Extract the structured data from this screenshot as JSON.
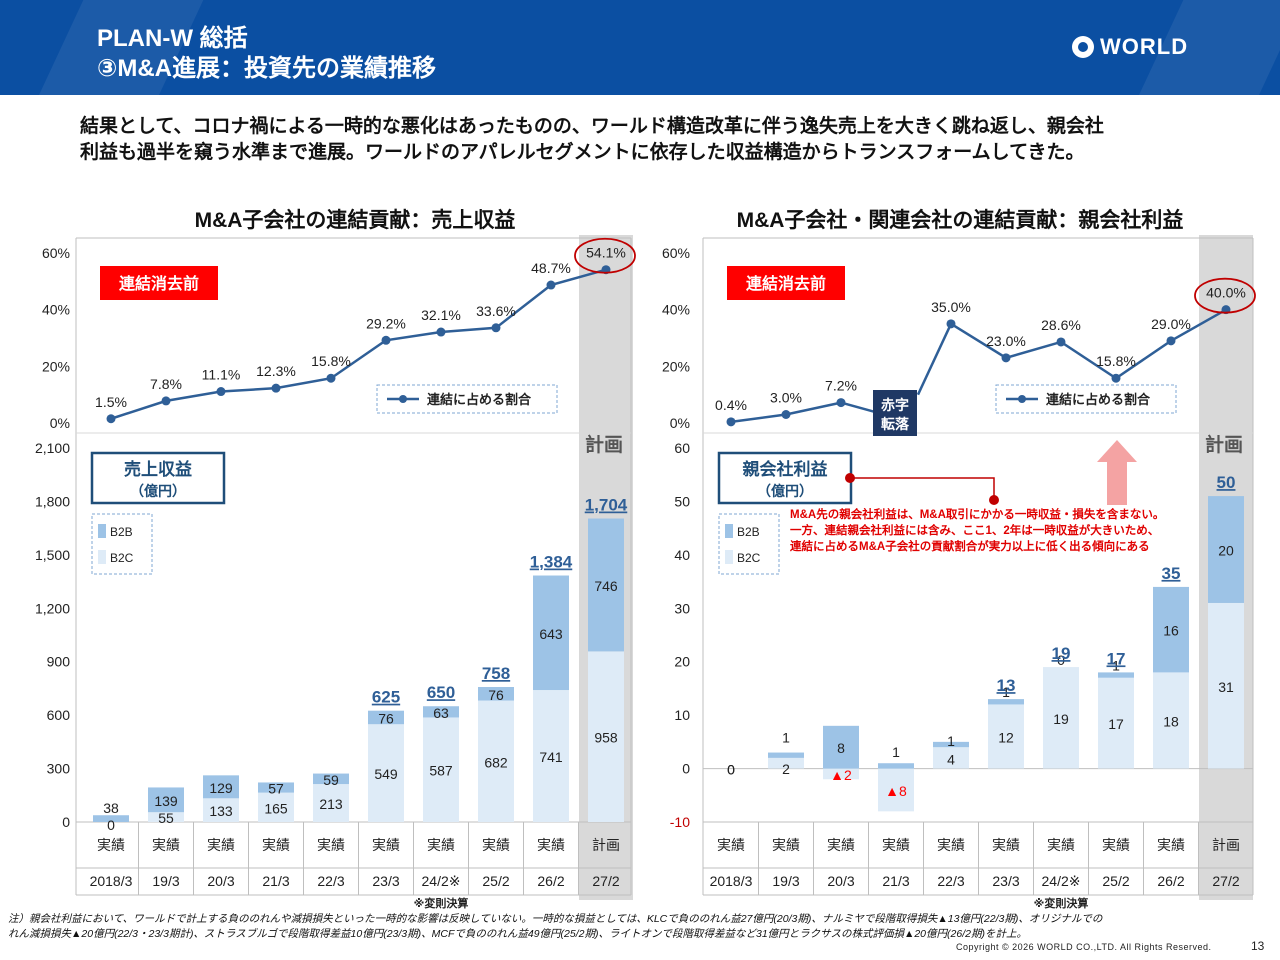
{
  "header": {
    "title_line1": "PLAN-W 総括",
    "title_line2": "③M&A進展：投資先の業績推移",
    "logo_text": "WORLD"
  },
  "summary": {
    "line1": "結果として、コロナ禍による一時的な悪化はあったものの、ワールド構造改革に伴う逸失売上を大きく跳ね返し、親会社",
    "line2": "利益も過半を窺う水準まで進展。ワールドのアパレルセグメントに依存した収益構造からトランスフォームしてきた。"
  },
  "colors": {
    "header_bg": "#0b4fa2",
    "b2b": "#9dc3e6",
    "b2c": "#deebf7",
    "line": "#2f5f97",
    "badge_red": "#ff0000",
    "plan_band": "#d9d9d9",
    "total_label": "#2f5f97"
  },
  "chart_data": [
    {
      "type": "line+stacked-bar",
      "title": "M&A子会社の連結貢献：売上収益",
      "badge": "連結消去前",
      "legend_line": "連結に占める割合",
      "bar_label": "売上収益",
      "bar_unit": "（億円）",
      "plan_label": "計画",
      "categories": [
        "2018/3",
        "19/3",
        "20/3",
        "21/3",
        "22/3",
        "23/3",
        "24/2※",
        "25/2",
        "26/2",
        "27/2"
      ],
      "rows": [
        "実績",
        "実績",
        "実績",
        "実績",
        "実績",
        "実績",
        "実績",
        "実績",
        "実績",
        "計画"
      ],
      "note": "※変則決算",
      "line": {
        "name": "連結に占める割合",
        "values": [
          1.5,
          7.8,
          11.1,
          12.3,
          15.8,
          29.2,
          32.1,
          33.6,
          48.7,
          54.1
        ],
        "labels": [
          "1.5%",
          "7.8%",
          "11.1%",
          "12.3%",
          "15.8%",
          "29.2%",
          "32.1%",
          "33.6%",
          "48.7%",
          "54.1%"
        ],
        "ylim": [
          0,
          60
        ],
        "ticks": [
          "0%",
          "20%",
          "40%",
          "60%"
        ]
      },
      "series": [
        {
          "name": "B2C",
          "values": [
            0,
            55,
            133,
            165,
            213,
            549,
            587,
            682,
            741,
            958
          ]
        },
        {
          "name": "B2B",
          "values": [
            38,
            139,
            129,
            57,
            59,
            76,
            63,
            76,
            643,
            746
          ]
        }
      ],
      "totals": [
        "",
        "",
        "",
        "",
        "",
        "625",
        "650",
        "758",
        "1,384",
        "1,704"
      ],
      "ylim": [
        0,
        2100
      ],
      "yticks": [
        "0",
        "300",
        "600",
        "900",
        "1,200",
        "1,500",
        "1,800",
        "2,100"
      ]
    },
    {
      "type": "line+stacked-bar",
      "title": "M&A子会社・関連会社の連結貢献：親会社利益",
      "badge": "連結消去前",
      "legend_line": "連結に占める割合",
      "bar_label": "親会社利益",
      "bar_unit": "（億円）",
      "plan_label": "計画",
      "turn_red": [
        "赤字",
        "転落"
      ],
      "categories": [
        "2018/3",
        "19/3",
        "20/3",
        "21/3",
        "22/3",
        "23/3",
        "24/2※",
        "25/2",
        "26/2",
        "27/2"
      ],
      "rows": [
        "実績",
        "実績",
        "実績",
        "実績",
        "実績",
        "実績",
        "実績",
        "実績",
        "実績",
        "計画"
      ],
      "note": "※変則決算",
      "line": {
        "name": "連結に占める割合",
        "values": [
          0.4,
          3.0,
          7.2,
          null,
          35.0,
          23.0,
          28.6,
          15.8,
          29.0,
          40.0
        ],
        "labels": [
          "0.4%",
          "3.0%",
          "7.2%",
          "",
          "35.0%",
          "23.0%",
          "28.6%",
          "15.8%",
          "29.0%",
          "40.0%"
        ],
        "ylim": [
          0,
          60
        ],
        "ticks": [
          "0%",
          "20%",
          "40%",
          "60%"
        ]
      },
      "series": [
        {
          "name": "B2C",
          "values": [
            0,
            2,
            -2,
            -8,
            4,
            12,
            19,
            17,
            18,
            31
          ]
        },
        {
          "name": "B2B",
          "values": [
            0,
            1,
            8,
            1,
            1,
            1,
            0,
            1,
            16,
            20
          ]
        }
      ],
      "b2c_labels": [
        "0",
        "2",
        "▲2",
        "▲8",
        "4",
        "12",
        "19",
        "17",
        "18",
        "31"
      ],
      "totals": [
        "",
        "",
        "",
        "",
        "",
        "13",
        "19",
        "17",
        "35",
        "50"
      ],
      "ylim": [
        -10,
        60
      ],
      "yticks": [
        "-10",
        "0",
        "10",
        "20",
        "30",
        "40",
        "50",
        "60"
      ],
      "annotation": [
        "M&A先の親会社利益は、M&A取引にかかる一時収益・損失を含まない。",
        "一方、連結親会社利益には含み、ここ1、2年は一時収益が大きいため、",
        "連結に占めるM&A子会社の貢献割合が実力以上に低く出る傾向にある"
      ]
    }
  ],
  "footnote": {
    "line1": "注）親会社利益において、ワールドで計上する負ののれんや減損損失といった一時的な影響は反映していない。一時的な損益としては、KLCで負ののれん益27億円(20/3期)、ナルミヤで段階取得損失▲13億円(22/3期)、オリジナルでの",
    "line2": "れん減損損失▲20億円(22/3・23/3期計)、ストラスブルゴで段階取得差益10億円(23/3期)、MCFで負ののれん益49億円(25/2期)、ライトオンで段階取得差益など31億円とラクサスの株式評価損▲20億円(26/2期)を計上。"
  },
  "copyright": "Copyright © 2026 WORLD CO.,LTD. All Rights Reserved.",
  "page_number": "13"
}
